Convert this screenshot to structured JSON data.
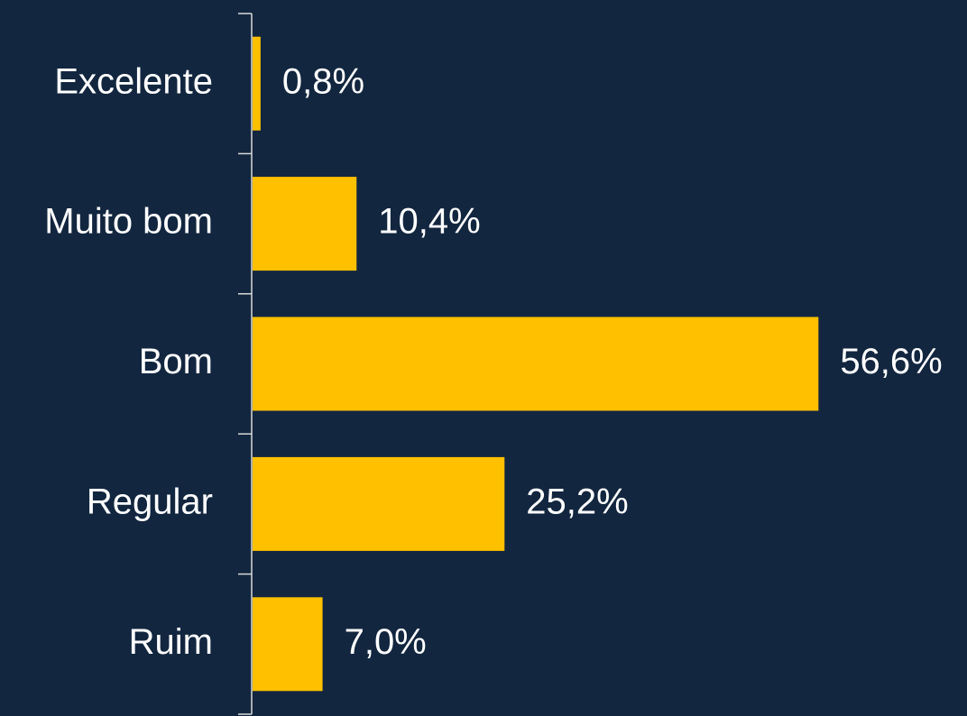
{
  "chart_data": {
    "type": "bar",
    "orientation": "horizontal",
    "categories": [
      "Excelente",
      "Muito bom",
      "Bom",
      "Regular",
      "Ruim"
    ],
    "values": [
      0.8,
      10.4,
      56.6,
      25.2,
      7.0
    ],
    "value_labels": [
      "0,8%",
      "10,4%",
      "56,6%",
      "25,2%",
      "7,0%"
    ],
    "color": "#ffc000",
    "xlim": [
      0,
      60
    ]
  }
}
